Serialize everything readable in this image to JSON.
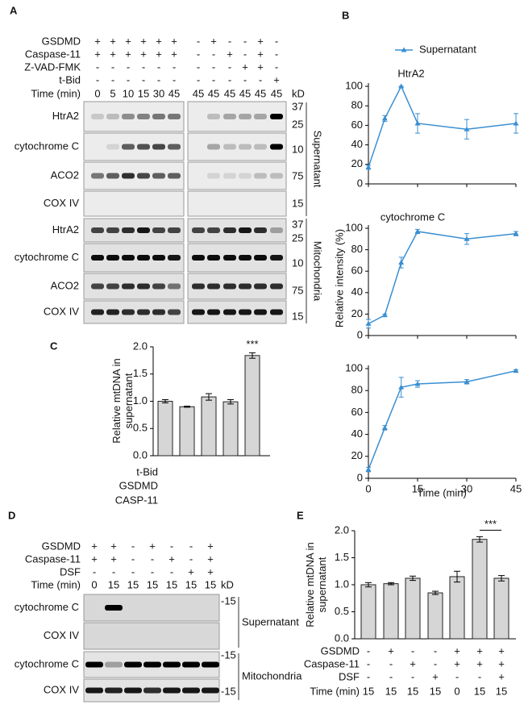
{
  "panel_labels": [
    "A",
    "B",
    "C",
    "D",
    "E"
  ],
  "panel_a": {
    "conditions": [
      {
        "name": "GSDMD",
        "left": [
          "+",
          "+",
          "+",
          "+",
          "+",
          "+"
        ],
        "right": [
          "-",
          "+",
          "-",
          "-",
          "+",
          "-"
        ]
      },
      {
        "name": "Caspase-11",
        "left": [
          "+",
          "+",
          "+",
          "+",
          "+",
          "+"
        ],
        "right": [
          "-",
          "-",
          "+",
          "-",
          "+",
          "-"
        ]
      },
      {
        "name": "Z-VAD-FMK",
        "left": [
          "-",
          "-",
          "-",
          "-",
          "-",
          "-"
        ],
        "right": [
          "-",
          "-",
          "-",
          "+",
          "+",
          "-"
        ]
      },
      {
        "name": "t-Bid",
        "left": [
          "-",
          "-",
          "-",
          "-",
          "-",
          "-"
        ],
        "right": [
          "-",
          "-",
          "-",
          "-",
          "-",
          "+"
        ]
      }
    ],
    "time_label": "Time (min)",
    "times_left": [
      "0",
      "5",
      "10",
      "15",
      "30",
      "45"
    ],
    "times_right": [
      "45",
      "45",
      "45",
      "45",
      "45",
      "45"
    ],
    "kd_label": "kD",
    "blots": [
      {
        "label": "HtrA2",
        "markers": [
          "37",
          "25"
        ]
      },
      {
        "label": "cytochrome C",
        "markers": [
          "10"
        ]
      },
      {
        "label": "ACO2",
        "markers": [
          "75"
        ]
      },
      {
        "label": "COX IV",
        "markers": [
          "15"
        ]
      },
      {
        "label": "HtrA2",
        "markers": [
          "37",
          "25"
        ]
      },
      {
        "label": "cytochrome C",
        "markers": [
          "10"
        ]
      },
      {
        "label": "ACO2",
        "markers": [
          "75"
        ]
      },
      {
        "label": "COX IV",
        "markers": [
          "15"
        ]
      }
    ],
    "fractions": [
      "Supernatant",
      "Mitochondria"
    ]
  },
  "chart_data": [
    {
      "type": "line",
      "title": "HtrA2",
      "x": [
        0,
        5,
        10,
        15,
        30,
        45
      ],
      "series": [
        {
          "name": "Supernatant",
          "color": "#3a8fd1",
          "values": [
            17,
            67,
            100,
            62,
            56,
            62
          ],
          "errors": [
            2,
            3,
            0,
            10,
            10,
            10
          ]
        }
      ],
      "xlim": [
        0,
        45
      ],
      "ylim": [
        0,
        100
      ],
      "xticks": [
        0,
        15,
        30,
        45
      ],
      "yticks": [
        0,
        20,
        40,
        60,
        80,
        100
      ]
    },
    {
      "type": "line",
      "title": "cytochrome C",
      "ylabel": "Relative intensity (%)",
      "x": [
        0,
        5,
        10,
        15,
        30,
        45
      ],
      "series": [
        {
          "color": "#3a8fd1",
          "values": [
            11,
            19,
            68,
            97,
            90,
            95
          ],
          "errors": [
            4,
            1,
            5,
            2,
            5,
            2
          ]
        }
      ],
      "xlim": [
        0,
        45
      ],
      "ylim": [
        0,
        100
      ],
      "xticks": [
        0,
        15,
        30,
        45
      ],
      "yticks": [
        0,
        20,
        40,
        60,
        80,
        100
      ]
    },
    {
      "type": "line",
      "xlabel": "Time (min)",
      "x": [
        0,
        5,
        10,
        15,
        30,
        45
      ],
      "series": [
        {
          "color": "#3a8fd1",
          "values": [
            8,
            46,
            83,
            86,
            88,
            98
          ],
          "errors": [
            2,
            2,
            9,
            3,
            2,
            1
          ]
        }
      ],
      "xlim": [
        0,
        45
      ],
      "ylim": [
        0,
        100
      ],
      "xticks": [
        0,
        15,
        30,
        45
      ],
      "yticks": [
        0,
        20,
        40,
        60,
        80,
        100
      ]
    },
    {
      "type": "bar",
      "ylabel": "Relative mtDNA in supernatant",
      "color": "#d6d6d6",
      "values": [
        1.0,
        0.9,
        1.08,
        0.99,
        1.84
      ],
      "errors": [
        0.03,
        0.01,
        0.06,
        0.04,
        0.05
      ],
      "value_annotations": [
        null,
        null,
        null,
        null,
        "***"
      ],
      "ylim": [
        0,
        2
      ],
      "yticks": [
        {
          "value": 0,
          "label": "0.0"
        },
        {
          "value": 0.5,
          "label": "0.5"
        },
        {
          "value": 1,
          "label": "1.0"
        },
        {
          "value": 1.5,
          "label": "1.5"
        },
        {
          "value": 2,
          "label": "2.0"
        }
      ],
      "row_labels": [
        "t-Bid",
        "GSDMD",
        "CASP-11"
      ]
    },
    {
      "type": "bar",
      "ylabel": "Relative mtDNA in supernatant",
      "color": "#d6d6d6",
      "values": [
        1.0,
        1.02,
        1.12,
        0.85,
        1.15,
        1.84,
        1.12
      ],
      "errors": [
        0.04,
        0.02,
        0.04,
        0.03,
        0.1,
        0.05,
        0.05
      ],
      "annotation": "***",
      "ylim": [
        0,
        2
      ],
      "yticks": [
        {
          "value": 0,
          "label": "0.0"
        },
        {
          "value": 0.5,
          "label": "0.5"
        },
        {
          "value": 1,
          "label": "1.0"
        },
        {
          "value": 1.5,
          "label": "1.5"
        },
        {
          "value": 2,
          "label": "2.0"
        }
      ],
      "conditions": [
        {
          "name": "GSDMD",
          "values": [
            "-",
            "+",
            "-",
            "-",
            "+",
            "+",
            "+"
          ]
        },
        {
          "name": "Caspase-11",
          "values": [
            "-",
            "-",
            "+",
            "-",
            "+",
            "+",
            "+"
          ]
        },
        {
          "name": "DSF",
          "values": [
            "-",
            "-",
            "-",
            "+",
            "-",
            "-",
            "+"
          ]
        },
        {
          "name": "Time (min)",
          "values": [
            "15",
            "15",
            "15",
            "15",
            "0",
            "15",
            "15"
          ]
        }
      ]
    }
  ],
  "panel_d": {
    "conditions": [
      {
        "name": "GSDMD",
        "values": [
          "+",
          "+",
          "-",
          "+",
          "-",
          "-",
          "+"
        ]
      },
      {
        "name": "Caspase-11",
        "values": [
          "+",
          "+",
          "-",
          "-",
          "+",
          "-",
          "+"
        ]
      },
      {
        "name": "DSF",
        "values": [
          "-",
          "-",
          "-",
          "-",
          "-",
          "+",
          "+"
        ]
      },
      {
        "name": "Time (min)",
        "values": [
          "0",
          "15",
          "15",
          "15",
          "15",
          "15",
          "15"
        ]
      }
    ],
    "kd_label": "kD",
    "blots": [
      {
        "label": "cytochrome C",
        "markers": [
          "-15"
        ]
      },
      {
        "label": "COX IV",
        "markers": []
      },
      {
        "label": "cytochrome C",
        "markers": [
          "-15"
        ]
      },
      {
        "label": "COX IV",
        "markers": [
          "-15"
        ]
      }
    ],
    "fractions": [
      "Supernatant",
      "Mitochondria"
    ]
  }
}
